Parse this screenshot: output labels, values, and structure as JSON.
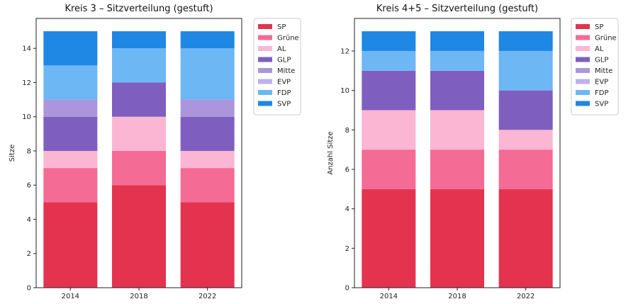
{
  "colors": {
    "SP": "#e3334f",
    "Grüne": "#f46b95",
    "AL": "#fbb6d3",
    "GLP": "#7e5fc0",
    "Mitte": "#ac96db",
    "EVP": "#bfb0ee",
    "FDP": "#6cb7f4",
    "SVP": "#1f87e4"
  },
  "chart_data": [
    {
      "type": "bar",
      "stacked": true,
      "title": "Kreis 3 – Sitzverteilung (gestuft)",
      "xlabel": "",
      "ylabel": "Sitze",
      "categories": [
        "2014",
        "2018",
        "2022"
      ],
      "ylim": [
        0,
        15.75
      ],
      "yticks": [
        0,
        2,
        4,
        6,
        8,
        10,
        12,
        14
      ],
      "legend_position": "outside-top-right",
      "series": [
        {
          "name": "SP",
          "values": [
            5,
            6,
            5
          ]
        },
        {
          "name": "Grüne",
          "values": [
            2,
            2,
            2
          ]
        },
        {
          "name": "AL",
          "values": [
            1,
            2,
            1
          ]
        },
        {
          "name": "GLP",
          "values": [
            2,
            2,
            2
          ]
        },
        {
          "name": "Mitte",
          "values": [
            1,
            0,
            1
          ]
        },
        {
          "name": "EVP",
          "values": [
            0,
            0,
            0
          ]
        },
        {
          "name": "FDP",
          "values": [
            2,
            2,
            3
          ]
        },
        {
          "name": "SVP",
          "values": [
            2,
            1,
            1
          ]
        }
      ]
    },
    {
      "type": "bar",
      "stacked": true,
      "title": "Kreis 4+5 – Sitzverteilung (gestuft)",
      "xlabel": "",
      "ylabel": "Anzahl Sitze",
      "categories": [
        "2014",
        "2018",
        "2022"
      ],
      "ylim": [
        0,
        13.65
      ],
      "yticks": [
        0,
        2,
        4,
        6,
        8,
        10,
        12
      ],
      "legend_position": "outside-top-right",
      "series": [
        {
          "name": "SP",
          "values": [
            5,
            5,
            5
          ]
        },
        {
          "name": "Grüne",
          "values": [
            2,
            2,
            2
          ]
        },
        {
          "name": "AL",
          "values": [
            2,
            2,
            1
          ]
        },
        {
          "name": "GLP",
          "values": [
            2,
            2,
            2
          ]
        },
        {
          "name": "Mitte",
          "values": [
            0,
            0,
            0
          ]
        },
        {
          "name": "EVP",
          "values": [
            0,
            0,
            0
          ]
        },
        {
          "name": "FDP",
          "values": [
            1,
            1,
            2
          ]
        },
        {
          "name": "SVP",
          "values": [
            1,
            1,
            1
          ]
        }
      ]
    }
  ]
}
